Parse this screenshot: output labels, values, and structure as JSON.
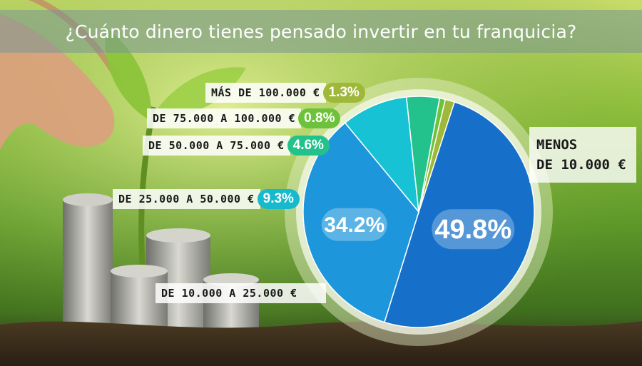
{
  "title": "¿Cuánto dinero tienes pensado invertir en tu franquicia?",
  "chart_data": {
    "type": "pie",
    "title": "¿Cuánto dinero tienes pensado invertir en tu franquicia?",
    "slices": [
      {
        "label_lines": [
          "MENOS",
          "DE 10.000 €"
        ],
        "value": 49.8,
        "display": "49.8%",
        "color": "#1670c9"
      },
      {
        "label": "DE 10.000 A 25.000 €",
        "value": 34.2,
        "display": "34.2%",
        "color": "#1e96dc"
      },
      {
        "label": "DE 25.000 A 50.000 €",
        "value": 9.3,
        "display": "9.3%",
        "color": "#17c2d4"
      },
      {
        "label": "DE 50.000 A 75.000 €",
        "value": 4.6,
        "display": "4.6%",
        "color": "#23c28c"
      },
      {
        "label": "DE 75.000 A 100.000 €",
        "value": 0.8,
        "display": "0.8%",
        "color": "#6cc23a"
      },
      {
        "label": "MÁS DE 100.000 €",
        "value": 1.3,
        "display": "1.3%",
        "color": "#9fb83a"
      }
    ]
  }
}
